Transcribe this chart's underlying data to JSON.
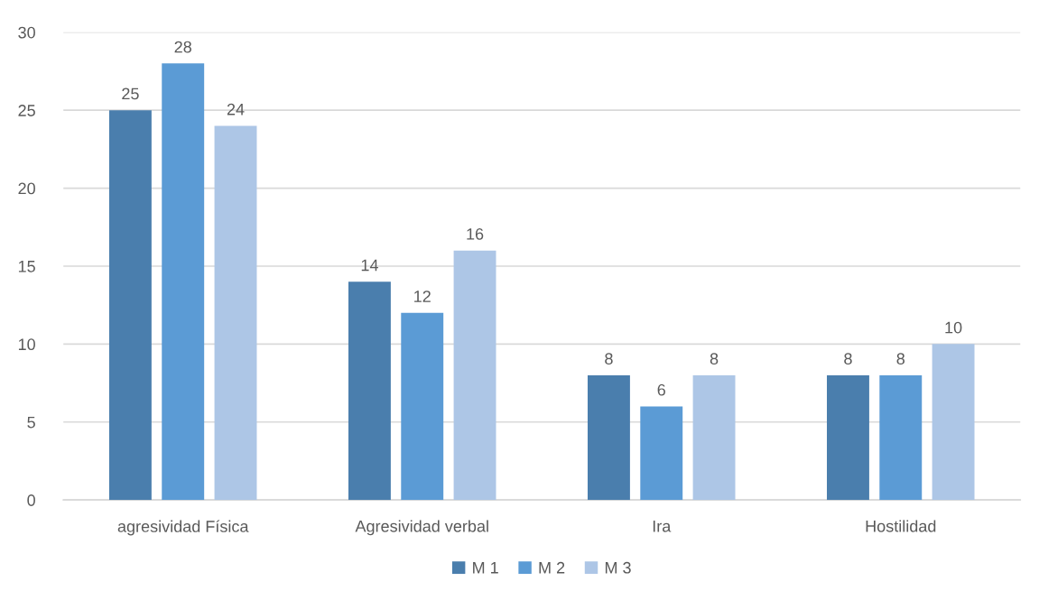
{
  "chart_data": {
    "type": "bar",
    "categories": [
      "agresividad Física",
      "Agresividad verbal",
      "Ira",
      "Hostilidad"
    ],
    "series": [
      {
        "name": "M 1",
        "color": "#4a7ead",
        "values": [
          25,
          14,
          8,
          8
        ]
      },
      {
        "name": "M 2",
        "color": "#5b9bd5",
        "values": [
          28,
          12,
          6,
          8
        ]
      },
      {
        "name": "M 3",
        "color": "#adc6e6",
        "values": [
          24,
          16,
          8,
          10
        ]
      }
    ],
    "ylim": [
      0,
      30
    ],
    "yticks": [
      0,
      5,
      10,
      15,
      20,
      25,
      30
    ],
    "grid": "y",
    "legend": "bottom",
    "data_labels": true
  }
}
